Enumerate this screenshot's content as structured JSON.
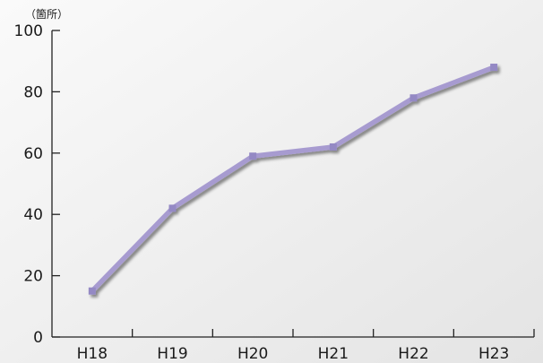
{
  "chart_data": {
    "type": "line",
    "unit": "（箇所）",
    "categories": [
      "H18",
      "H19",
      "H20",
      "H21",
      "H22",
      "H23"
    ],
    "series": [
      {
        "values": [
          15,
          42,
          59,
          62,
          78,
          88
        ]
      }
    ],
    "ylim": [
      0,
      100
    ],
    "yticks": [
      0,
      20,
      40,
      60,
      80,
      100
    ],
    "grid": false,
    "colors": {
      "line": "#a79bd0",
      "marker": "#9489c4",
      "axis": "#222222",
      "shadow": "#8a8a8a",
      "background_light": "#fafafa",
      "background_dark": "#e4e4e4"
    }
  }
}
